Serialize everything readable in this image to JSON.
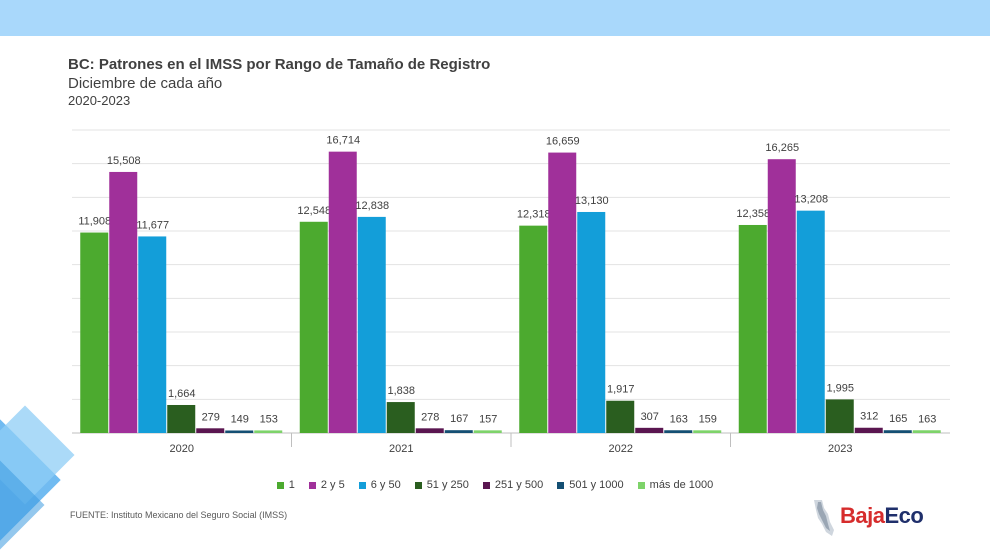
{
  "title": "BC: Patrones en el IMSS por Rango de Tamaño de Registro",
  "subtitle": "Diciembre de cada año",
  "period": "2020-2023",
  "source": "FUENTE: Instituto Mexicano del Seguro Social (IMSS)",
  "logo": {
    "part1": "Baja",
    "part2": "Eco"
  },
  "chart_data": {
    "type": "bar",
    "categories": [
      "2020",
      "2021",
      "2022",
      "2023"
    ],
    "series": [
      {
        "name": "1",
        "color": "#4caa2f",
        "values": [
          11908,
          12548,
          12318,
          12358
        ],
        "labels": [
          "11,908",
          "12,548",
          "12,318",
          "12,358"
        ]
      },
      {
        "name": "2 y 5",
        "color": "#a0309a",
        "values": [
          15508,
          16714,
          16659,
          16265
        ],
        "labels": [
          "15,508",
          "16,714",
          "16,659",
          "16,265"
        ]
      },
      {
        "name": "6 y 50",
        "color": "#139ed9",
        "values": [
          11677,
          12838,
          13130,
          13208
        ],
        "labels": [
          "11,677",
          "12,838",
          "13,130",
          "13,208"
        ]
      },
      {
        "name": "51 y 250",
        "color": "#2a5e1f",
        "values": [
          1664,
          1838,
          1917,
          1995
        ],
        "labels": [
          "1,664",
          "1,838",
          "1,917",
          "1,995"
        ]
      },
      {
        "name": "251 y 500",
        "color": "#5a1650",
        "values": [
          279,
          278,
          307,
          312
        ],
        "labels": [
          "279",
          "278",
          "307",
          "312"
        ]
      },
      {
        "name": "501 y 1000",
        "color": "#144f73",
        "values": [
          149,
          167,
          163,
          165
        ],
        "labels": [
          "149",
          "167",
          "163",
          "165"
        ]
      },
      {
        "name": "más de 1000",
        "color": "#7ed36a",
        "values": [
          153,
          157,
          159,
          163
        ],
        "labels": [
          "153",
          "157",
          "159",
          "163"
        ]
      }
    ],
    "ylim": [
      0,
      18000
    ],
    "grid": true,
    "legend": "bottom"
  }
}
